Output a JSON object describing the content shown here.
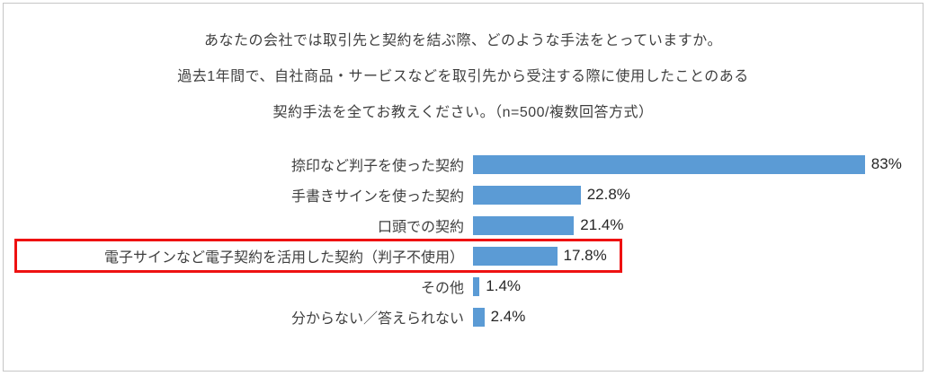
{
  "chart_data": {
    "type": "bar",
    "orientation": "horizontal",
    "title_lines": [
      "あなたの会社では取引先と契約を結ぶ際、どのような手法をとっていますか。",
      "過去1年間で、自社商品・サービスなどを取引先から受注する際に使用したことのある",
      "契約手法を全てお教えください。（n=500/複数回答方式）"
    ],
    "categories": [
      "捺印など判子を使った契約",
      "手書きサインを使った契約",
      "口頭での契約",
      "電子サインなど電子契約を活用した契約（判子不使用）",
      "その他",
      "分からない／答えられない"
    ],
    "values": [
      83,
      22.8,
      21.4,
      17.8,
      1.4,
      2.4
    ],
    "value_labels": [
      "83%",
      "22.8%",
      "21.4%",
      "17.8%",
      "1.4%",
      "2.4%"
    ],
    "xlim": [
      0,
      100
    ],
    "grid": false,
    "legend": "none",
    "sample_note": "n=500/複数回答方式",
    "bar_color": "#5b9bd5",
    "text_color": "#3f3f3f",
    "highlight": {
      "index": 3,
      "color": "#ee1111"
    }
  }
}
